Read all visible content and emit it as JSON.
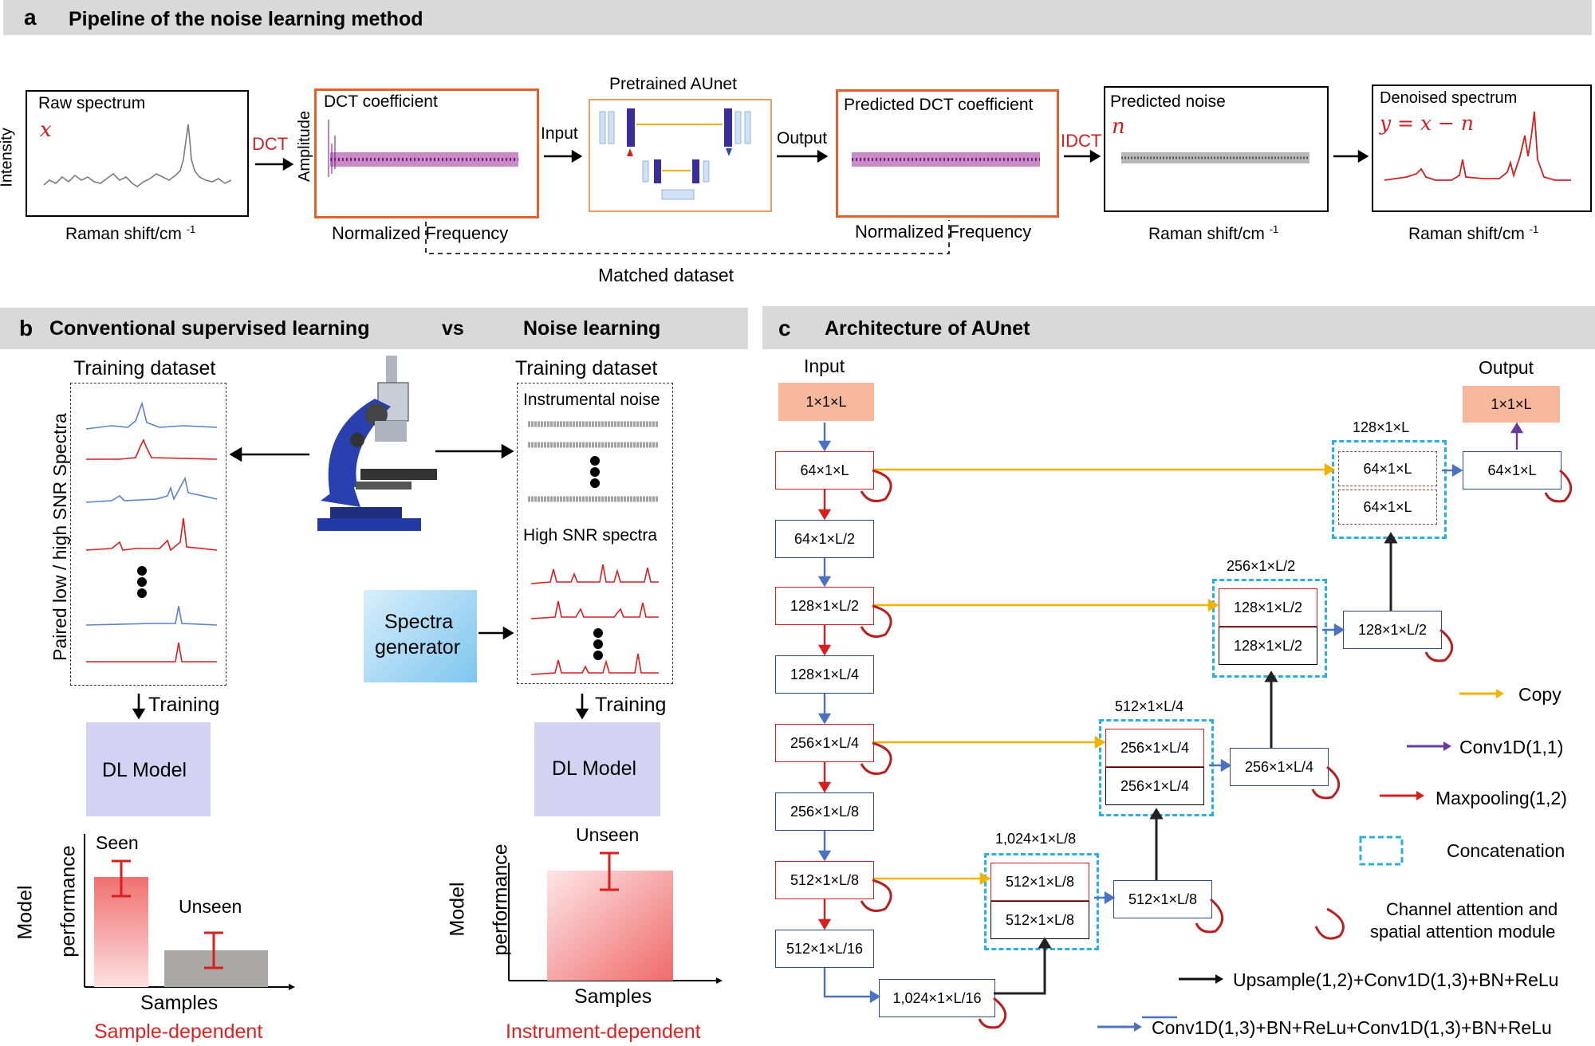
{
  "panel_a": {
    "letter": "a",
    "title": "Pipeline of the noise learning method",
    "intensity": "Intensity",
    "raw_title": "Raw spectrum",
    "raw_var": "x",
    "raman1": "Raman shift/cm ",
    "raman_sup": "-1",
    "dct": "DCT",
    "amplitude": "Amplitude",
    "dct_coef": "DCT coefficient",
    "norm_freq": "Normalized Frequency",
    "input": "Input",
    "pretrained": "Pretrained AUnet",
    "output": "Output",
    "pred_dct": "Predicted DCT coefficient",
    "norm_freq2": "Normalized Frequency",
    "idct": "IDCT",
    "pred_noise": "Predicted noise",
    "noise_var": "n",
    "raman2": "Raman shift/cm ",
    "denoised": "Denoised spectrum",
    "equation": "y = x − n",
    "raman3": "Raman shift/cm ",
    "matched": "Matched dataset"
  },
  "panel_b": {
    "letter": "b",
    "title_left": "Conventional supervised learning",
    "vs": "vs",
    "title_right": "Noise learning",
    "training_dataset_left": "Training dataset",
    "paired": "Paired low / high SNR Spectra",
    "training_dataset_right": "Training dataset",
    "instrumental_noise": "Instrumental noise",
    "high_snr": "High SNR spectra",
    "spectra_generator": [
      "Spectra",
      "generator"
    ],
    "training1": "Training",
    "training2": "Training",
    "dl_model1": "DL Model",
    "dl_model2": "DL Model",
    "model_perf": [
      "Model",
      "performance"
    ],
    "seen": "Seen",
    "unseen": "Unseen",
    "unseen2": "Unseen",
    "samples1": "Samples",
    "samples2": "Samples",
    "sample_dep": "Sample-dependent",
    "instr_dep": "Instrument-dependent",
    "red": "#e02020"
  },
  "panel_c": {
    "letter": "c",
    "title": "Architecture of AUnet",
    "input": "Input",
    "output": "Output",
    "in_shape": "1×1×L",
    "out_shape": "1×1×L",
    "enc": [
      "64×1×L",
      "64×1×L/2",
      "128×1×L/2",
      "128×1×L/4",
      "256×1×L/4",
      "256×1×L/8",
      "512×1×L/8",
      "512×1×L/16"
    ],
    "bottom": "1,024×1×L/16",
    "concat_labels": [
      "128×1×L",
      "256×1×L/2",
      "512×1×L/4",
      "1,024×1×L/8"
    ],
    "concat_top": [
      "64×1×L",
      "128×1×L/2",
      "256×1×L/4",
      "512×1×L/8"
    ],
    "concat_bot": [
      "64×1×L",
      "128×1×L/2",
      "256×1×L/4",
      "512×1×L/8"
    ],
    "dec": [
      "64×1×L",
      "128×1×L/2",
      "256×1×L/4",
      "512×1×L/8"
    ],
    "legend": {
      "copy": "Copy",
      "conv11": "Conv1D(1,1)",
      "maxpool": "Maxpooling(1,2)",
      "concat": "Concatenation",
      "attention": [
        "Channel attention and",
        "spatial attention module"
      ],
      "upsample": "Upsample(1,2)+Conv1D(1,3)+BN+ReLu",
      "conv": "Conv1D(1,3)+BN+ReLu+Conv1D(1,3)+BN+ReLu"
    },
    "colors": {
      "copy": "#f0b400",
      "conv11": "#6a3aa0",
      "maxpool": "#d81e1e",
      "concat": "#2ab0e0",
      "up": "#111111",
      "conv": "#4a72c0",
      "input_fill": "#f6b79a"
    }
  }
}
